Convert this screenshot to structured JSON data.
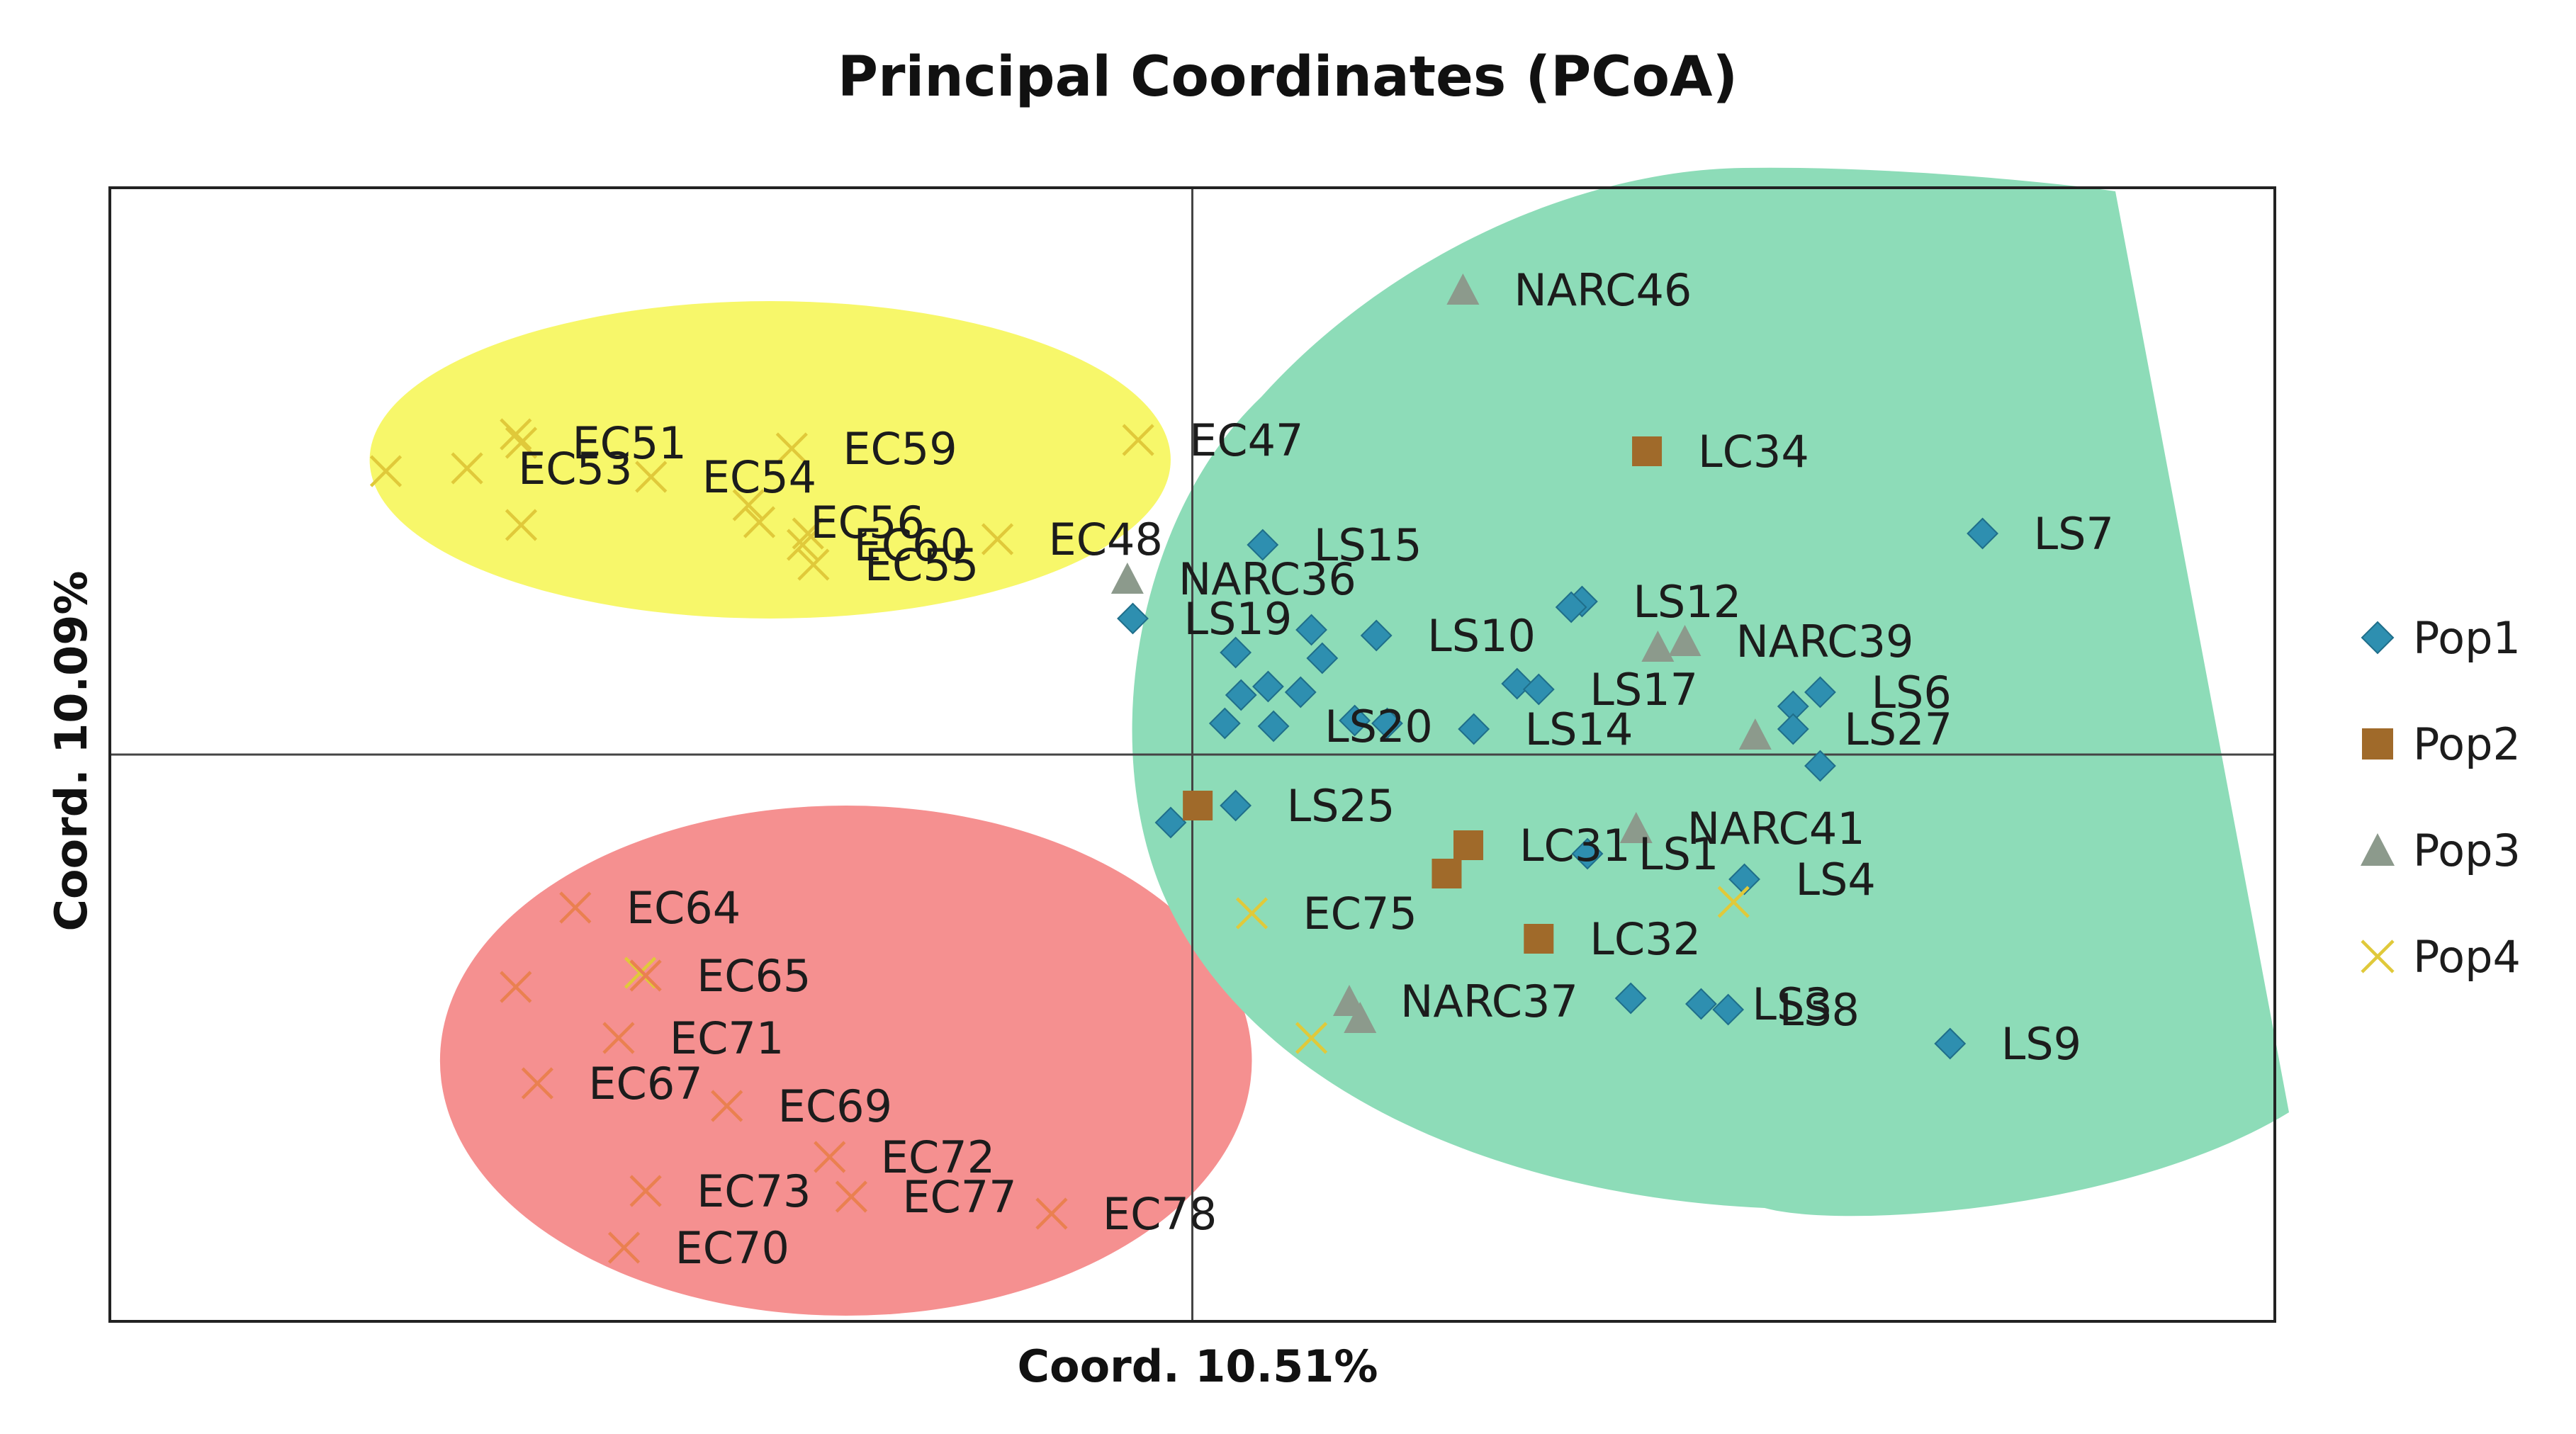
{
  "chart_data": {
    "type": "scatter",
    "title": "Principal Coordinates (PCoA)",
    "xlabel": "Coord. 10.51%",
    "ylabel": "Coord. 10.09%",
    "xlim": [
      -1,
      1
    ],
    "ylim": [
      -1,
      1
    ],
    "grid": false,
    "zero_lines": true,
    "legend_position": "right",
    "colors": {
      "pop1": "#2e8fb0",
      "pop2": "#a06a2a",
      "pop3": "#8c9a8c",
      "pop4": "#e0c93a",
      "pop4_red": "#ea8050",
      "ellipse_yellow": "#f7f76a",
      "ellipse_red": "#f59090",
      "region_green": "#8ddcb8",
      "frame": "#222222"
    },
    "regions": [
      {
        "name": "yellow-cluster",
        "shape": "ellipse",
        "cx": -0.39,
        "cy": 0.52,
        "rx": 0.37,
        "ry": 0.28,
        "color": "#f7f76a"
      },
      {
        "name": "red-cluster",
        "shape": "ellipse",
        "cx": -0.32,
        "cy": -0.54,
        "rx": 0.375,
        "ry": 0.45,
        "color": "#f59090"
      },
      {
        "name": "green-cluster",
        "shape": "blob",
        "color": "#8ddcb8"
      }
    ],
    "legend": [
      {
        "key": "pop1",
        "label": "Pop1",
        "marker": "diamond"
      },
      {
        "key": "pop2",
        "label": "Pop2",
        "marker": "square"
      },
      {
        "key": "pop3",
        "label": "Pop3",
        "marker": "triangle"
      },
      {
        "key": "pop4",
        "label": "Pop4",
        "marker": "x"
      }
    ],
    "series": [
      {
        "name": "Pop1",
        "key": "pop1",
        "marker": "diamond",
        "points": [
          {
            "x": 0.065,
            "y": 0.37,
            "label": "LS15"
          },
          {
            "x": -0.055,
            "y": 0.24,
            "label": "LS19"
          },
          {
            "x": 0.73,
            "y": 0.39,
            "label": "LS7"
          },
          {
            "x": 0.36,
            "y": 0.27,
            "label": "LS12"
          },
          {
            "x": 0.35,
            "y": 0.26
          },
          {
            "x": 0.17,
            "y": 0.21,
            "label": "LS10"
          },
          {
            "x": 0.11,
            "y": 0.22
          },
          {
            "x": 0.04,
            "y": 0.18
          },
          {
            "x": 0.12,
            "y": 0.17
          },
          {
            "x": 0.3,
            "y": 0.125
          },
          {
            "x": 0.32,
            "y": 0.115,
            "label": "LS17"
          },
          {
            "x": 0.07,
            "y": 0.12
          },
          {
            "x": 0.045,
            "y": 0.105
          },
          {
            "x": 0.1,
            "y": 0.11
          },
          {
            "x": 0.03,
            "y": 0.055
          },
          {
            "x": 0.075,
            "y": 0.05,
            "label": "LS20"
          },
          {
            "x": 0.15,
            "y": 0.06
          },
          {
            "x": 0.18,
            "y": 0.055
          },
          {
            "x": 0.26,
            "y": 0.045,
            "label": "LS14"
          },
          {
            "x": 0.58,
            "y": 0.11,
            "label": "LS6"
          },
          {
            "x": 0.555,
            "y": 0.085
          },
          {
            "x": 0.555,
            "y": 0.045,
            "label": "LS27"
          },
          {
            "x": 0.58,
            "y": -0.02
          },
          {
            "x": 0.04,
            "y": -0.09,
            "label": "LS25"
          },
          {
            "x": -0.02,
            "y": -0.12
          },
          {
            "x": 0.365,
            "y": -0.175,
            "label": "LS1"
          },
          {
            "x": 0.51,
            "y": -0.22,
            "label": "LS4"
          },
          {
            "x": 0.405,
            "y": -0.43
          },
          {
            "x": 0.47,
            "y": -0.44,
            "label": "LS3"
          },
          {
            "x": 0.495,
            "y": -0.45,
            "label": "LS8"
          },
          {
            "x": 0.7,
            "y": -0.51,
            "label": "LS9"
          }
        ]
      },
      {
        "name": "Pop2",
        "key": "pop2",
        "marker": "square",
        "points": [
          {
            "x": 0.42,
            "y": 0.535,
            "label": "LC34"
          },
          {
            "x": 0.005,
            "y": -0.09
          },
          {
            "x": 0.255,
            "y": -0.16,
            "label": "LC31"
          },
          {
            "x": 0.235,
            "y": -0.21
          },
          {
            "x": 0.32,
            "y": -0.325,
            "label": "LC32"
          }
        ]
      },
      {
        "name": "Pop3",
        "key": "pop3",
        "marker": "triangle",
        "points": [
          {
            "x": 0.25,
            "y": 0.82,
            "label": "NARC46"
          },
          {
            "x": -0.06,
            "y": 0.31,
            "label": "NARC36"
          },
          {
            "x": 0.43,
            "y": 0.19
          },
          {
            "x": 0.455,
            "y": 0.2,
            "label": "NARC39"
          },
          {
            "x": 0.52,
            "y": 0.035
          },
          {
            "x": 0.41,
            "y": -0.13,
            "label": "NARC41"
          },
          {
            "x": 0.145,
            "y": -0.435,
            "label": "NARC37"
          },
          {
            "x": 0.155,
            "y": -0.465
          }
        ]
      },
      {
        "name": "Pop4",
        "key": "pop4",
        "marker": "x",
        "points": [
          {
            "x": -0.625,
            "y": 0.565
          },
          {
            "x": -0.62,
            "y": 0.55,
            "label": "EC51"
          },
          {
            "x": -0.745,
            "y": 0.5
          },
          {
            "x": -0.67,
            "y": 0.505,
            "label": "EC53"
          },
          {
            "x": -0.5,
            "y": 0.49,
            "label": "EC54"
          },
          {
            "x": -0.37,
            "y": 0.54,
            "label": "EC59"
          },
          {
            "x": -0.41,
            "y": 0.44
          },
          {
            "x": -0.4,
            "y": 0.41,
            "label": "EC56"
          },
          {
            "x": -0.355,
            "y": 0.39
          },
          {
            "x": -0.36,
            "y": 0.37,
            "label": "EC60"
          },
          {
            "x": -0.62,
            "y": 0.405
          },
          {
            "x": -0.35,
            "y": 0.335,
            "label": "EC55"
          },
          {
            "x": -0.18,
            "y": 0.38,
            "label": "EC48"
          },
          {
            "x": -0.05,
            "y": 0.555,
            "label": "EC47"
          },
          {
            "x": 0.055,
            "y": -0.28,
            "label": "EC75",
            "color_key": "pop4"
          },
          {
            "x": 0.5,
            "y": -0.26,
            "color_key": "pop4"
          },
          {
            "x": 0.11,
            "y": -0.5,
            "color_key": "pop4"
          },
          {
            "x": -0.57,
            "y": -0.27,
            "label": "EC64",
            "color_key": "pop4_red"
          },
          {
            "x": -0.51,
            "y": -0.385
          },
          {
            "x": -0.505,
            "y": -0.39,
            "label": "EC65",
            "color_key": "pop4_red"
          },
          {
            "x": -0.625,
            "y": -0.41,
            "color_key": "pop4_red"
          },
          {
            "x": -0.53,
            "y": -0.5,
            "label": "EC71",
            "color_key": "pop4_red"
          },
          {
            "x": -0.605,
            "y": -0.58,
            "label": "EC67",
            "color_key": "pop4_red"
          },
          {
            "x": -0.43,
            "y": -0.62,
            "label": "EC69",
            "color_key": "pop4_red"
          },
          {
            "x": -0.335,
            "y": -0.71,
            "label": "EC72",
            "color_key": "pop4_red"
          },
          {
            "x": -0.505,
            "y": -0.77,
            "label": "EC73",
            "color_key": "pop4_red"
          },
          {
            "x": -0.315,
            "y": -0.78,
            "label": "EC77",
            "color_key": "pop4_red"
          },
          {
            "x": -0.13,
            "y": -0.81,
            "label": "EC78",
            "color_key": "pop4_red"
          },
          {
            "x": -0.525,
            "y": -0.87,
            "label": "EC70",
            "color_key": "pop4_red"
          }
        ]
      }
    ]
  }
}
